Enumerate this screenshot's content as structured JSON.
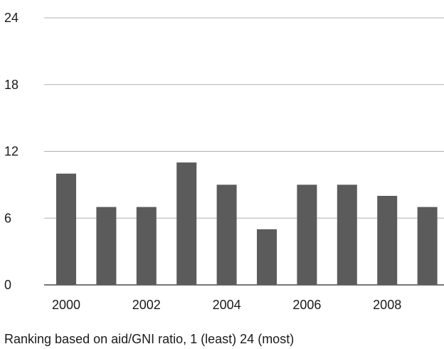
{
  "chart_data": {
    "type": "bar",
    "categories": [
      "2000",
      "2001",
      "2002",
      "2003",
      "2004",
      "2005",
      "2006",
      "2007",
      "2008",
      "2009"
    ],
    "x_tick_labels": [
      "2000",
      "2002",
      "2004",
      "2006",
      "2008"
    ],
    "values": [
      10,
      7,
      7,
      11,
      9,
      5,
      9,
      9,
      8,
      7
    ],
    "ylim": [
      0,
      24
    ],
    "y_ticks": [
      0,
      6,
      12,
      18,
      24
    ],
    "caption": "Ranking based on aid/GNI ratio, 1 (least) 24 (most)",
    "grid": true,
    "bar_color": "#5b5b5b",
    "grid_color": "#b0b0b0"
  }
}
